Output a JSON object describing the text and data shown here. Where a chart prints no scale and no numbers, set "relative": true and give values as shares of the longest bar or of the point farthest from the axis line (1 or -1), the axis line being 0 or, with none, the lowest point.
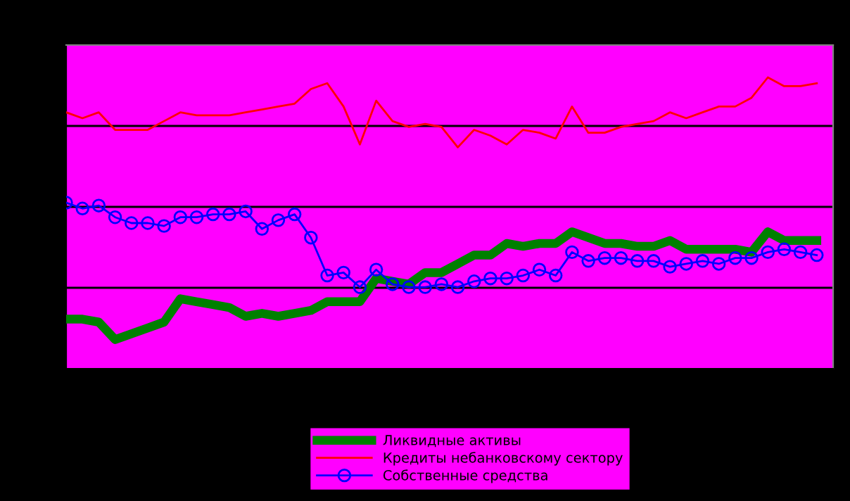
{
  "chart_data": {
    "type": "line",
    "relative": true,
    "grid": "y",
    "legend": "bottom",
    "tick_labels": false,
    "categories": [
      null,
      null,
      null,
      null,
      null,
      null,
      null,
      null,
      null,
      null,
      null,
      null,
      null,
      null,
      null,
      null,
      null,
      null,
      null,
      null,
      null,
      null,
      null,
      null,
      null,
      null,
      null,
      null,
      null,
      null,
      null,
      null,
      null,
      null,
      null,
      null,
      null,
      null,
      null,
      null,
      null,
      null,
      null,
      null,
      null,
      null,
      null
    ],
    "series": [
      {
        "name": "Ликвидные активы",
        "color": "#008000",
        "marker": "none",
        "values": [
          0.17,
          0.17,
          0.16,
          0.1,
          0.12,
          0.14,
          0.16,
          0.24,
          0.23,
          0.22,
          0.21,
          0.18,
          0.19,
          0.18,
          0.19,
          0.2,
          0.23,
          0.23,
          0.23,
          0.31,
          0.3,
          0.29,
          0.33,
          0.33,
          0.36,
          0.39,
          0.39,
          0.43,
          0.42,
          0.43,
          0.43,
          0.47,
          0.45,
          0.43,
          0.43,
          0.42,
          0.42,
          0.44,
          0.41,
          0.41,
          0.41,
          0.41,
          0.4,
          0.47,
          0.44,
          0.44,
          0.44
        ]
      },
      {
        "name": "Кредиты небанковскому сектору",
        "color": "#ff0000",
        "marker": "none",
        "values": [
          0.88,
          0.86,
          0.88,
          0.82,
          0.82,
          0.82,
          0.85,
          0.88,
          0.87,
          0.87,
          0.87,
          0.88,
          0.89,
          0.9,
          0.91,
          0.96,
          0.98,
          0.9,
          0.77,
          0.92,
          0.85,
          0.83,
          0.84,
          0.83,
          0.76,
          0.82,
          0.8,
          0.77,
          0.82,
          0.81,
          0.79,
          0.9,
          0.81,
          0.81,
          0.83,
          0.84,
          0.85,
          0.88,
          0.86,
          0.88,
          0.9,
          0.9,
          0.93,
          1.0,
          0.97,
          0.97,
          0.98
        ]
      },
      {
        "name": "Собственные средства",
        "color": "#0000ff",
        "marker": "circle",
        "values": [
          0.57,
          0.55,
          0.56,
          0.52,
          0.5,
          0.5,
          0.49,
          0.52,
          0.52,
          0.53,
          0.53,
          0.54,
          0.48,
          0.51,
          0.53,
          0.45,
          0.32,
          0.33,
          0.28,
          0.34,
          0.29,
          0.28,
          0.28,
          0.29,
          0.28,
          0.3,
          0.31,
          0.31,
          0.32,
          0.34,
          0.32,
          0.4,
          0.37,
          0.38,
          0.38,
          0.37,
          0.37,
          0.35,
          0.36,
          0.37,
          0.36,
          0.38,
          0.38,
          0.4,
          0.41,
          0.4,
          0.39
        ]
      }
    ]
  }
}
